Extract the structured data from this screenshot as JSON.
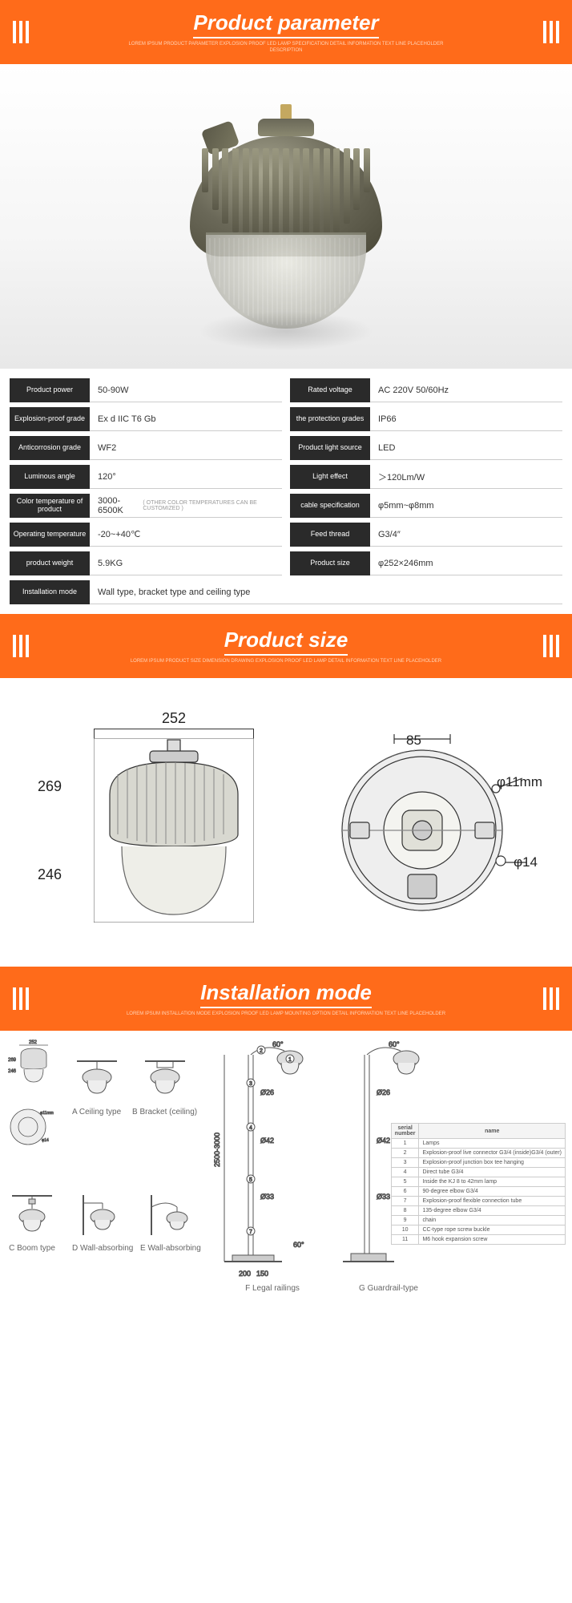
{
  "colors": {
    "header_bg": "#ff6b1a",
    "header_text": "#ffffff",
    "spec_label_bg": "#2a2a2a",
    "spec_value_border": "#cccccc",
    "body_text": "#333333"
  },
  "sections": {
    "parameter": {
      "title": "Product parameter",
      "subtitle": "LOREM IPSUM PRODUCT PARAMETER EXPLOSION PROOF LED LAMP SPECIFICATION DETAIL INFORMATION TEXT LINE PLACEHOLDER DESCRIPTION"
    },
    "size": {
      "title": "Product size",
      "subtitle": "LOREM IPSUM PRODUCT SIZE DIMENSION DRAWING EXPLOSION PROOF LED LAMP DETAIL INFORMATION TEXT LINE PLACEHOLDER"
    },
    "install": {
      "title": "Installation mode",
      "subtitle": "LOREM IPSUM INSTALLATION MODE EXPLOSION PROOF LED LAMP MOUNTING OPTION DETAIL INFORMATION TEXT LINE PLACEHOLDER"
    }
  },
  "specs": {
    "left": [
      {
        "label": "Product power",
        "value": "50-90W"
      },
      {
        "label": "Explosion-proof grade",
        "value": "Ex d IIC T6 Gb"
      },
      {
        "label": "Anticorrosion grade",
        "value": "WF2"
      },
      {
        "label": "Luminous angle",
        "value": "120°"
      },
      {
        "label": "Color temperature of product",
        "value": "3000-6500K",
        "note": "( OTHER COLOR TEMPERATURES CAN BE CUSTOMIZED )"
      },
      {
        "label": "Operating temperature",
        "value": "-20~+40℃"
      },
      {
        "label": "product weight",
        "value": "5.9KG"
      }
    ],
    "right": [
      {
        "label": "Rated voltage",
        "value": "AC 220V  50/60Hz"
      },
      {
        "label": "the protection grades",
        "value": "IP66"
      },
      {
        "label": "Product light source",
        "value": "LED"
      },
      {
        "label": "Light effect",
        "value": "＞120Lm/W"
      },
      {
        "label": "cable specification",
        "value": "φ5mm~φ8mm"
      },
      {
        "label": "Feed thread",
        "value": "G3/4″"
      },
      {
        "label": "Product size",
        "value": "φ252×246mm"
      }
    ],
    "full": {
      "label": "Installation mode",
      "value": "Wall type, bracket type and ceiling type"
    }
  },
  "size_drawing": {
    "side": {
      "width_label": "252",
      "height_outer": "269",
      "height_inner": "246"
    },
    "top": {
      "inner_label": "85",
      "hole1": "φ11mm",
      "hole2": "φ14"
    }
  },
  "install": {
    "types": {
      "a": "A Ceiling type",
      "b": "B Bracket (ceiling)",
      "c": "C Boom type",
      "d": "D Wall-absorbing",
      "e": "E Wall-absorbing",
      "f": "F Legal railings",
      "g": "G Guardrail-type"
    },
    "pole_height": "2500-3000",
    "angle": "60°",
    "dia": {
      "d26": "Ø26",
      "d42": "Ø42",
      "d33": "Ø33"
    },
    "dims": {
      "w252": "252",
      "h269": "269",
      "h246": "246",
      "phi11": "φ11mm",
      "phi14": "φ14",
      "w200": "200",
      "w150": "150",
      "a60": "60°"
    },
    "serial_header": {
      "num": "serial number",
      "name": "name"
    },
    "serial": [
      {
        "n": "1",
        "name": "Lamps"
      },
      {
        "n": "2",
        "name": "Explosion-proof live connector G3/4 (inside)G3/4 (outer)"
      },
      {
        "n": "3",
        "name": "Explosion-proof junction box tee hanging"
      },
      {
        "n": "4",
        "name": "Direct tube G3/4"
      },
      {
        "n": "5",
        "name": "Inside the KJ 8 to 42mm lamp"
      },
      {
        "n": "6",
        "name": "90-degree elbow G3/4"
      },
      {
        "n": "7",
        "name": "Explosion-proof flexible connection tube"
      },
      {
        "n": "8",
        "name": "135-degree elbow G3/4"
      },
      {
        "n": "9",
        "name": "chain"
      },
      {
        "n": "10",
        "name": "CC-type rope screw buckle"
      },
      {
        "n": "11",
        "name": "M6 hook expansion screw"
      }
    ]
  }
}
